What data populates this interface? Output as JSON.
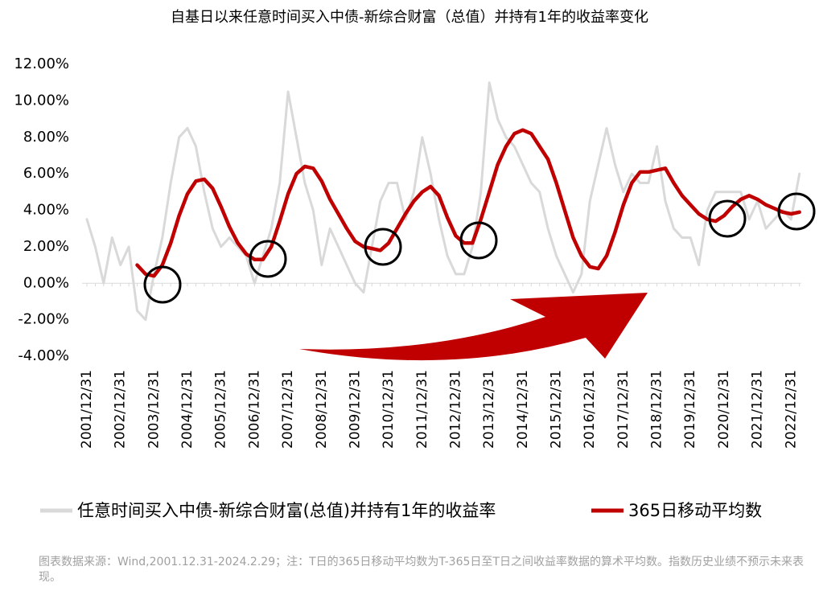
{
  "chart_data": {
    "type": "line",
    "title": "自基日以来任意时间买入中债-新综合财富（总值）并持有1年的收益率变化",
    "note": "图表数据来源：Wind,2001.12.31-2024.2.29；注：T日的365日移动平均数为T-365日至T日之间收益率数据的算术平均数。指数历史业绩不预示未来表现。",
    "categories": [
      "2001/12/31",
      null,
      null,
      null,
      "2002/12/31",
      null,
      null,
      null,
      "2003/12/31",
      null,
      null,
      null,
      "2004/12/31",
      null,
      null,
      null,
      "2005/12/31",
      null,
      null,
      null,
      "2006/12/31",
      null,
      null,
      null,
      "2007/12/31",
      null,
      null,
      null,
      "2008/12/31",
      null,
      null,
      null,
      "2009/12/31",
      null,
      null,
      null,
      "2010/12/31",
      null,
      null,
      null,
      "2011/12/31",
      null,
      null,
      null,
      "2012/12/31",
      null,
      null,
      null,
      "2013/12/31",
      null,
      null,
      null,
      "2014/12/31",
      null,
      null,
      null,
      "2015/12/31",
      null,
      null,
      null,
      "2016/12/31",
      null,
      null,
      null,
      "2017/12/31",
      null,
      null,
      null,
      "2018/12/31",
      null,
      null,
      null,
      "2019/12/31",
      null,
      null,
      null,
      "2020/12/31",
      null,
      null,
      null,
      "2021/12/31",
      null,
      null,
      null,
      "2022/12/31",
      null
    ],
    "series": [
      {
        "name": "任意时间买入中债-新综合财富(总值)并持有1年的收益率",
        "color": "#d9d9d9",
        "values": [
          3.5,
          2,
          0,
          2.5,
          1,
          2,
          -1.5,
          -2,
          0.5,
          2.5,
          5.5,
          8,
          8.5,
          7.5,
          5,
          3,
          2,
          2.5,
          2,
          1.5,
          0,
          1.5,
          3,
          5.5,
          10.5,
          8,
          5.5,
          4,
          1,
          3,
          2,
          1,
          0,
          -0.5,
          2,
          4.5,
          5.5,
          5.5,
          3.5,
          5,
          8,
          6,
          3.5,
          1.5,
          0.5,
          0.5,
          2,
          5,
          11,
          9,
          8,
          7.5,
          6.5,
          5.5,
          5,
          3,
          1.5,
          0.5,
          -0.5,
          0.5,
          4.5,
          6.5,
          8.5,
          6.5,
          5,
          6,
          5.5,
          5.5,
          7.5,
          4.5,
          3,
          2.5,
          2.5,
          1,
          4,
          5,
          5,
          5,
          5,
          3.5,
          4.5,
          3,
          3.5,
          4,
          3.5,
          6
        ]
      },
      {
        "name": "365日移动平均数",
        "color": "#c00000",
        "values": [
          null,
          null,
          null,
          null,
          null,
          null,
          1,
          0.5,
          0.4,
          1,
          2.2,
          3.7,
          4.9,
          5.6,
          5.7,
          5.2,
          4.2,
          3.1,
          2.2,
          1.6,
          1.3,
          1.3,
          2,
          3.4,
          4.9,
          6,
          6.4,
          6.3,
          5.6,
          4.6,
          3.8,
          3,
          2.3,
          2,
          1.9,
          1.8,
          2.2,
          3,
          3.8,
          4.5,
          5,
          5.3,
          4.8,
          3.6,
          2.6,
          2.2,
          2.2,
          3.5,
          5,
          6.5,
          7.5,
          8.2,
          8.4,
          8.2,
          7.5,
          6.8,
          5.5,
          4,
          2.5,
          1.5,
          0.9,
          0.8,
          1.5,
          2.8,
          4.3,
          5.5,
          6.1,
          6.1,
          6.2,
          6.3,
          5.5,
          4.8,
          4.3,
          3.8,
          3.5,
          3.4,
          3.7,
          4.2,
          4.6,
          4.8,
          4.6,
          4.3,
          4.1,
          3.9,
          3.8,
          3.9
        ]
      }
    ],
    "ylim": [
      -4,
      12
    ],
    "yticks": [
      {
        "value": -4,
        "label": "-4.00%"
      },
      {
        "value": -2,
        "label": "-2.00%"
      },
      {
        "value": 0,
        "label": "0.00%"
      },
      {
        "value": 2,
        "label": "2.00%"
      },
      {
        "value": 4,
        "label": "4.00%"
      },
      {
        "value": 6,
        "label": "6.00%"
      },
      {
        "value": 8,
        "label": "8.00%"
      },
      {
        "value": 10,
        "label": "10.00%"
      },
      {
        "value": 12,
        "label": "12.00%"
      }
    ],
    "grid": false
  }
}
